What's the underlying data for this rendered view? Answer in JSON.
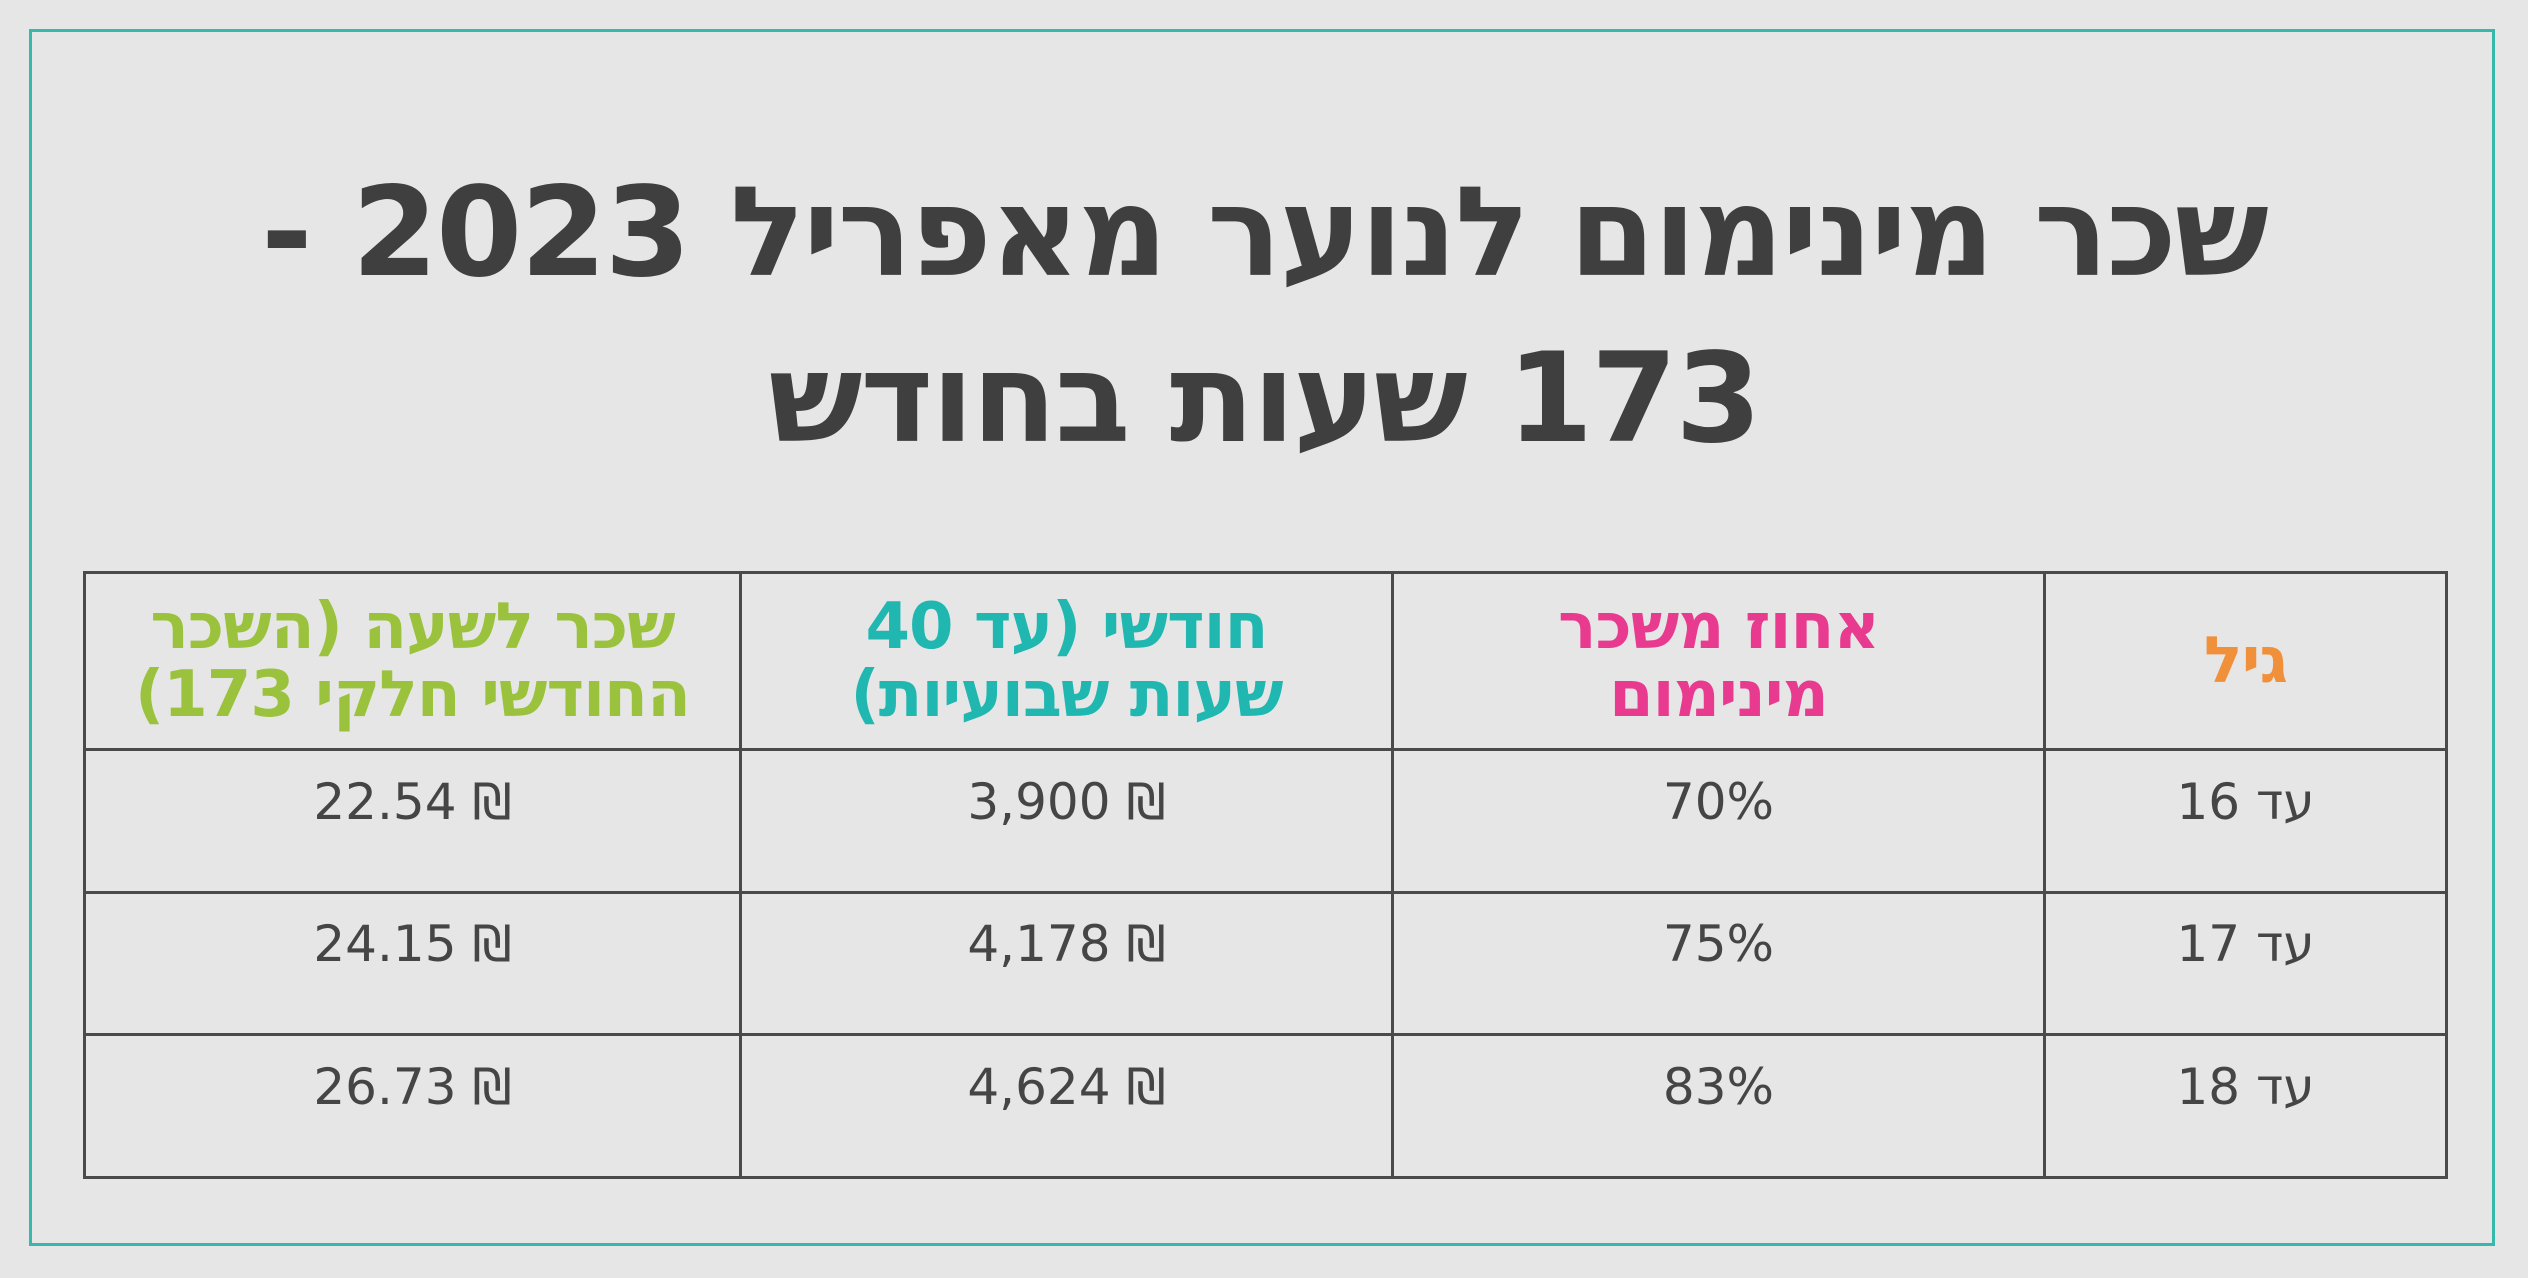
{
  "title": {
    "line1": "שכר מינימום לנוער מאפריל 2023 -",
    "line2": "173 שעות בחודש"
  },
  "table": {
    "headers": [
      {
        "line1": "גיל",
        "line2": "",
        "color": "#f0903a"
      },
      {
        "line1": "אחוז משכר",
        "line2": "מינימום",
        "color": "#e83a8e"
      },
      {
        "line1": "חודשי (עד 40",
        "line2": "שעות שבועיות)",
        "color": "#1fb7b0"
      },
      {
        "line1": "שכר לשעה (השכר",
        "line2": "החודשי חלקי 173)",
        "color": "#9bc23c"
      }
    ],
    "rows": [
      {
        "age": "עד 16",
        "percent": "70%",
        "monthly": "₪ 3,900",
        "hourly": "₪ 22.54"
      },
      {
        "age": "עד 17",
        "percent": "75%",
        "monthly": "₪ 4,178",
        "hourly": "₪ 24.15"
      },
      {
        "age": "עד 18",
        "percent": "83%",
        "monthly": "₪ 4,624",
        "hourly": "₪ 26.73"
      }
    ]
  },
  "colors": {
    "background": "#e6e6e6",
    "frame": "#36b8ad",
    "title": "#3f3f3f",
    "grid": "#4a4a4a"
  }
}
